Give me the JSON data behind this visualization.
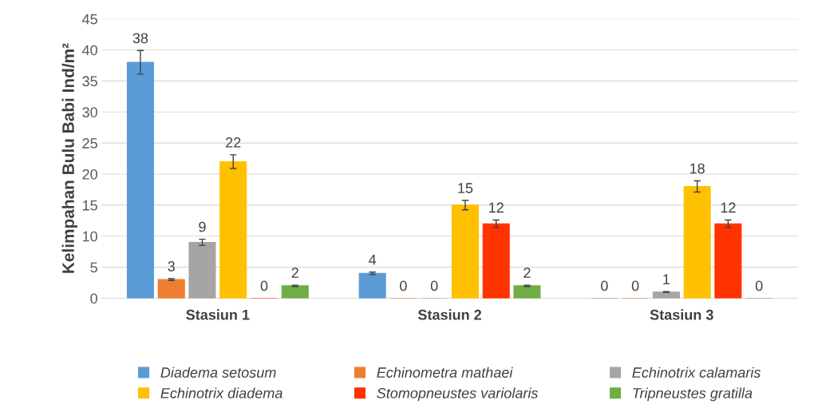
{
  "chart_data": {
    "type": "bar",
    "ylabel": "Kelimpahan Bulu Babi Ind/m²",
    "categories": [
      "Stasiun 1",
      "Stasiun 2",
      "Stasiun 3"
    ],
    "series": [
      {
        "name": "Diadema setosum",
        "color": "#5b9bd5",
        "values": [
          38,
          4,
          0
        ],
        "errors": [
          1.9,
          0.2,
          null
        ]
      },
      {
        "name": "Echinometra mathaei",
        "color": "#ed7d31",
        "values": [
          3,
          0,
          0
        ],
        "errors": [
          0.15,
          null,
          null
        ]
      },
      {
        "name": "Echinotrix calamaris",
        "color": "#a5a5a5",
        "values": [
          9,
          0,
          1
        ],
        "errors": [
          0.5,
          null,
          0.05
        ]
      },
      {
        "name": "Echinotrix diadema",
        "color": "#ffc000",
        "values": [
          22,
          15,
          18
        ],
        "errors": [
          1.1,
          0.75,
          0.9
        ]
      },
      {
        "name": "Stomopneustes variolaris",
        "color": "#ff3300",
        "values": [
          0,
          12,
          12
        ],
        "errors": [
          null,
          0.6,
          0.6
        ]
      },
      {
        "name": "Tripneustes gratilla",
        "color": "#70ad47",
        "values": [
          2,
          2,
          0
        ],
        "errors": [
          0.1,
          0.1,
          null
        ]
      }
    ],
    "ylim": [
      0,
      45
    ],
    "yticks": [
      0,
      5,
      10,
      15,
      20,
      25,
      30,
      35,
      40,
      45
    ],
    "grid": "y",
    "legend": "bottom",
    "data_labels": true
  }
}
